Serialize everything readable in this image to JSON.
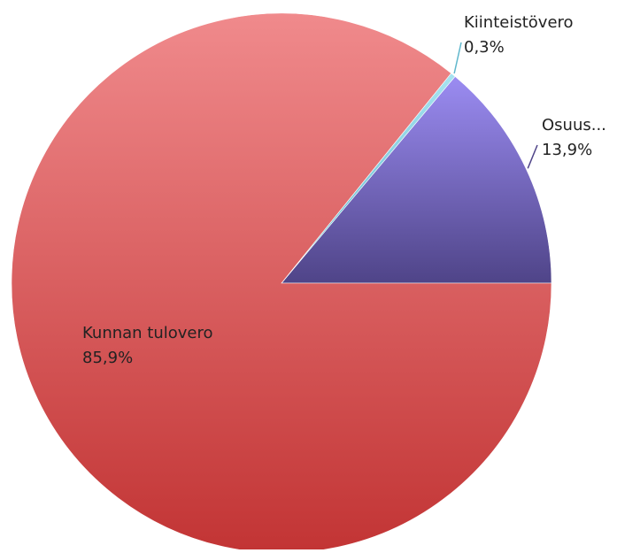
{
  "chart_data": {
    "type": "pie",
    "start_angle_deg": 0,
    "direction": "counterclockwise",
    "legend": "none",
    "slices": [
      {
        "label": "Osuus...",
        "value_label": "13,9%",
        "value": 13.9,
        "color_top": "#9b8cf2",
        "color_bottom": "#4f4488",
        "label_position": "outside"
      },
      {
        "label": "Kiinteistövero",
        "value_label": "0,3%",
        "value": 0.3,
        "color_top": "#a7e3f0",
        "color_bottom": "#5fb7cc",
        "label_position": "outside"
      },
      {
        "label": "Kunnan tulovero",
        "value_label": "85,9%",
        "value": 85.9,
        "color_top": "#f08a8c",
        "color_bottom": "#c23434",
        "label_position": "inside"
      }
    ]
  }
}
